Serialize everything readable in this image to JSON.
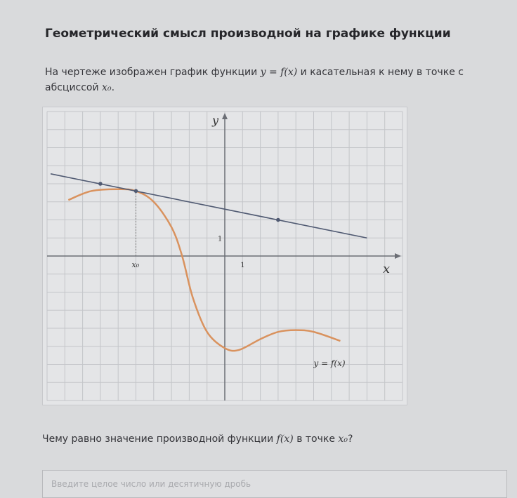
{
  "page": {
    "title": "Геометрический смысл производной на графике функции",
    "intro_before": "На чертеже изображен график функции ",
    "intro_func": "y = f(x)",
    "intro_middle": " и касательная к нему в точке с абсциссой ",
    "intro_point": "x₀",
    "intro_end": ".",
    "question_before": "Чему равно значение производной функции ",
    "question_func": "f(x)",
    "question_middle": " в точке ",
    "question_point": "x₀",
    "question_end": "?",
    "answer_placeholder": "Введите целое число или десятичную дробь"
  },
  "chart_data": {
    "type": "line",
    "xlim": [
      -10,
      10
    ],
    "ylim": [
      -8,
      8
    ],
    "grid": true,
    "x_axis_label": "x",
    "y_axis_label": "y",
    "x_tick_label": "1",
    "y_tick_label": "1",
    "x0_label": "x₀",
    "x0": -5,
    "curve_label": "y = f(x)",
    "colors": {
      "curve": "#d9925e",
      "tangent": "#505a72",
      "grid": "#c3c5c9",
      "axis": "#6b6e75"
    },
    "curve_points": [
      [
        -8.8,
        3.1
      ],
      [
        -7.5,
        3.6
      ],
      [
        -6,
        3.7
      ],
      [
        -5,
        3.6
      ],
      [
        -4,
        3.0
      ],
      [
        -3,
        1.6
      ],
      [
        -2.4,
        0
      ],
      [
        -1.8,
        -2.3
      ],
      [
        -1,
        -4.2
      ],
      [
        0,
        -5.1
      ],
      [
        0.8,
        -5.2
      ],
      [
        2,
        -4.6
      ],
      [
        3,
        -4.2
      ],
      [
        4,
        -4.1
      ],
      [
        5,
        -4.2
      ],
      [
        6.5,
        -4.7
      ]
    ],
    "tangent_points": [
      [
        -9.8,
        4.55
      ],
      [
        8,
        1.0
      ]
    ],
    "marked_points": [
      [
        -7,
        4
      ],
      [
        -5,
        3.6
      ],
      [
        3,
        2
      ]
    ]
  }
}
